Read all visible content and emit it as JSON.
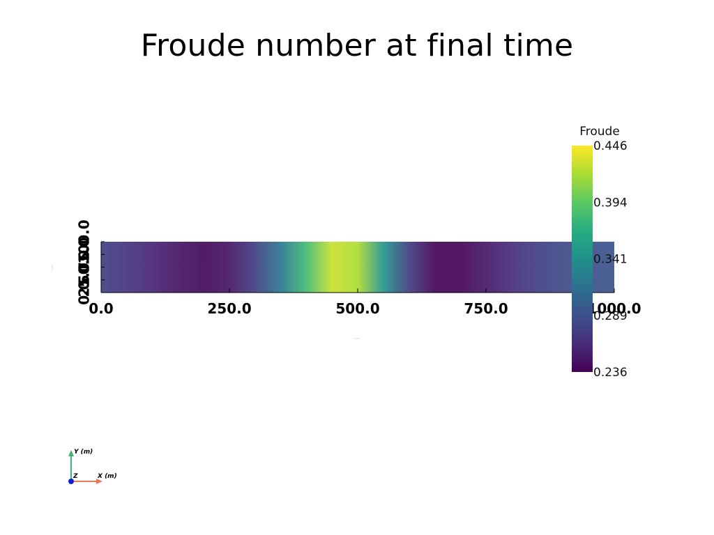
{
  "title": "Froude number at final time",
  "chart_data": {
    "type": "heatmap",
    "title": "Froude number at final time",
    "xlabel": "X (m)",
    "ylabel": "Y (m)",
    "xlim": [
      0.0,
      1000.0
    ],
    "ylim": [
      0.0,
      100.0
    ],
    "x_ticks": [
      "0.0",
      "250.0",
      "500.0",
      "750.0",
      "1000.0"
    ],
    "y_ticks": [
      "0.0",
      "25.0",
      "50.0",
      "75.0",
      "100.0"
    ],
    "colorbar": {
      "title": "Froude",
      "ticks": [
        "0.446",
        "0.394",
        "0.341",
        "0.289",
        "0.236"
      ],
      "range": [
        0.236,
        0.446
      ],
      "colormap": "viridis"
    },
    "profile_x": [
      0,
      50,
      100,
      150,
      200,
      250,
      300,
      350,
      400,
      450,
      500,
      550,
      600,
      650,
      700,
      750,
      800,
      850,
      900,
      950,
      1000
    ],
    "profile_values": [
      0.275,
      0.268,
      0.258,
      0.248,
      0.24,
      0.248,
      0.275,
      0.32,
      0.38,
      0.43,
      0.42,
      0.345,
      0.275,
      0.238,
      0.238,
      0.25,
      0.262,
      0.275,
      0.283,
      0.288,
      0.29
    ]
  },
  "orientation_axes": {
    "x_label": "X (m)",
    "y_label": "Y (m)",
    "z_label": "Z",
    "x_color": "#f07850",
    "y_color": "#3cb371",
    "z_color": "#1020d0"
  }
}
